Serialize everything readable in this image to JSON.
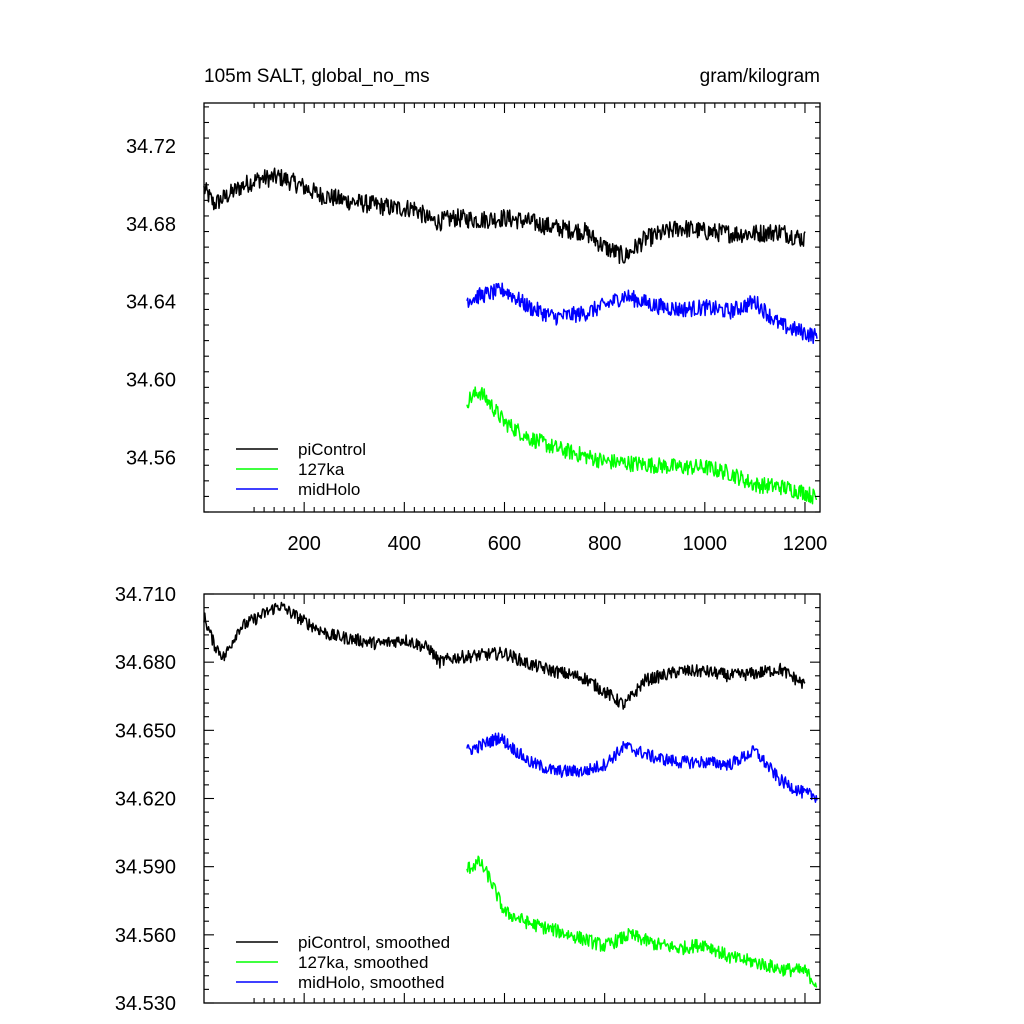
{
  "chart_data": [
    {
      "type": "line",
      "title": "105m SALT, global_no_ms",
      "units": "gram/kilogram",
      "xlim": [
        0,
        1230
      ],
      "ylim": [
        34.532,
        34.742
      ],
      "x_ticks": [
        200,
        400,
        600,
        800,
        1000,
        1200
      ],
      "x_tick_labels": [
        "200",
        "400",
        "600",
        "800",
        "1000",
        "1200"
      ],
      "y_ticks": [
        34.56,
        34.6,
        34.64,
        34.68,
        34.72
      ],
      "y_tick_labels": [
        "34.56",
        "34.60",
        "34.64",
        "34.68",
        "34.72"
      ],
      "legend_position": "bottom-left",
      "series": [
        {
          "name": "piControl",
          "color": "#000000",
          "noise": 0.0048,
          "x": [
            0,
            20,
            50,
            80,
            110,
            150,
            190,
            230,
            280,
            330,
            380,
            420,
            450,
            470,
            500,
            550,
            600,
            650,
            700,
            760,
            800,
            840,
            880,
            950,
            1000,
            1050,
            1100,
            1150,
            1200
          ],
          "y": [
            34.698,
            34.69,
            34.695,
            34.7,
            34.703,
            34.704,
            34.7,
            34.695,
            34.692,
            34.69,
            34.688,
            34.688,
            34.682,
            34.681,
            34.683,
            34.682,
            34.683,
            34.681,
            34.678,
            34.676,
            34.668,
            34.663,
            34.672,
            34.678,
            34.676,
            34.675,
            34.675,
            34.676,
            34.672
          ]
        },
        {
          "name": "127ka",
          "color": "#00ff00",
          "noise": 0.0042,
          "x": [
            525,
            550,
            570,
            600,
            650,
            700,
            800,
            850,
            900,
            950,
            1000,
            1050,
            1100,
            1150,
            1200,
            1225
          ],
          "y": [
            34.589,
            34.594,
            34.588,
            34.578,
            34.57,
            34.565,
            34.558,
            34.557,
            34.556,
            34.555,
            34.555,
            34.552,
            34.546,
            34.545,
            34.542,
            34.539
          ]
        },
        {
          "name": "midHolo",
          "color": "#0000ff",
          "noise": 0.0042,
          "x": [
            525,
            550,
            600,
            650,
            700,
            760,
            800,
            840,
            900,
            950,
            1000,
            1050,
            1100,
            1150,
            1200,
            1225
          ],
          "y": [
            34.641,
            34.643,
            34.646,
            34.637,
            34.632,
            34.634,
            34.638,
            34.643,
            34.638,
            34.636,
            34.637,
            34.635,
            34.64,
            34.628,
            34.624,
            34.622
          ]
        }
      ]
    },
    {
      "type": "line",
      "xlim": [
        0,
        1230
      ],
      "ylim": [
        34.53,
        34.71
      ],
      "x_ticks": [
        200,
        400,
        600,
        800,
        1000,
        1200
      ],
      "y_ticks": [
        34.53,
        34.56,
        34.59,
        34.62,
        34.65,
        34.68,
        34.71
      ],
      "y_tick_labels": [
        "34.530",
        "34.560",
        "34.590",
        "34.620",
        "34.650",
        "34.680",
        "34.710"
      ],
      "legend_position": "bottom-left",
      "series": [
        {
          "name": "piControl, smoothed",
          "color": "#000000",
          "noise": 0.0028,
          "x": [
            0,
            20,
            40,
            70,
            110,
            150,
            200,
            250,
            300,
            350,
            400,
            450,
            470,
            500,
            550,
            600,
            650,
            700,
            760,
            800,
            840,
            880,
            950,
            1000,
            1050,
            1100,
            1150,
            1200
          ],
          "y": [
            34.7,
            34.688,
            34.682,
            34.695,
            34.7,
            34.705,
            34.698,
            34.692,
            34.69,
            34.688,
            34.69,
            34.686,
            34.68,
            34.682,
            34.683,
            34.684,
            34.679,
            34.676,
            34.673,
            34.667,
            34.661,
            34.672,
            34.676,
            34.676,
            34.674,
            34.675,
            34.677,
            34.67
          ]
        },
        {
          "name": "127ka, smoothed",
          "color": "#00ff00",
          "noise": 0.003,
          "x": [
            525,
            550,
            570,
            600,
            650,
            700,
            760,
            800,
            850,
            900,
            950,
            1000,
            1050,
            1100,
            1150,
            1200,
            1225
          ],
          "y": [
            34.589,
            34.592,
            34.585,
            34.57,
            34.565,
            34.562,
            34.558,
            34.555,
            34.56,
            34.556,
            34.554,
            34.556,
            34.55,
            34.548,
            34.545,
            34.544,
            34.538
          ]
        },
        {
          "name": "midHolo, smoothed",
          "color": "#0000ff",
          "noise": 0.0028,
          "x": [
            525,
            550,
            590,
            650,
            700,
            760,
            800,
            840,
            900,
            950,
            1000,
            1050,
            1100,
            1150,
            1200,
            1225
          ],
          "y": [
            34.641,
            34.643,
            34.647,
            34.636,
            34.632,
            34.632,
            34.635,
            34.643,
            34.638,
            34.636,
            34.636,
            34.635,
            34.641,
            34.628,
            34.622,
            34.621
          ]
        }
      ]
    }
  ]
}
